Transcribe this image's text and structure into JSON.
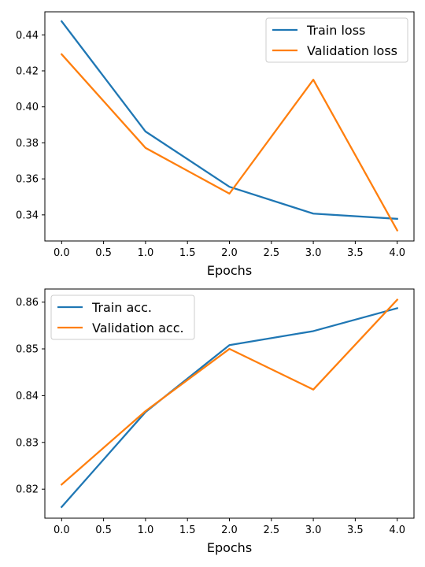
{
  "chart_data": [
    {
      "type": "line",
      "xlabel": "Epochs",
      "ylabel": "",
      "xlim": [
        -0.2,
        4.2
      ],
      "ylim": [
        0.3255,
        0.4528
      ],
      "xticks": [
        0.0,
        0.5,
        1.0,
        1.5,
        2.0,
        2.5,
        3.0,
        3.5,
        4.0
      ],
      "xtick_labels": [
        "0.0",
        "0.5",
        "1.0",
        "1.5",
        "2.0",
        "2.5",
        "3.0",
        "3.5",
        "4.0"
      ],
      "yticks": [
        0.34,
        0.36,
        0.38,
        0.4,
        0.42,
        0.44
      ],
      "ytick_labels": [
        "0.34",
        "0.36",
        "0.38",
        "0.40",
        "0.42",
        "0.44"
      ],
      "grid": false,
      "legend_position": "top-right",
      "x": [
        0,
        1,
        2,
        3,
        4
      ],
      "series": [
        {
          "name": "Train loss",
          "color": "#1f77b4",
          "values": [
            0.4475,
            0.3863,
            0.3556,
            0.3407,
            0.3378
          ]
        },
        {
          "name": "Validation loss",
          "color": "#ff7f0e",
          "values": [
            0.4292,
            0.3772,
            0.3518,
            0.4151,
            0.3314
          ]
        }
      ]
    },
    {
      "type": "line",
      "xlabel": "Epochs",
      "ylabel": "",
      "xlim": [
        -0.2,
        4.2
      ],
      "ylim": [
        0.8138,
        0.8628
      ],
      "xticks": [
        0.0,
        0.5,
        1.0,
        1.5,
        2.0,
        2.5,
        3.0,
        3.5,
        4.0
      ],
      "xtick_labels": [
        "0.0",
        "0.5",
        "1.0",
        "1.5",
        "2.0",
        "2.5",
        "3.0",
        "3.5",
        "4.0"
      ],
      "yticks": [
        0.82,
        0.83,
        0.84,
        0.85,
        0.86
      ],
      "ytick_labels": [
        "0.82",
        "0.83",
        "0.84",
        "0.85",
        "0.86"
      ],
      "grid": false,
      "legend_position": "top-left",
      "x": [
        0,
        1,
        2,
        3,
        4
      ],
      "series": [
        {
          "name": "Train acc.",
          "color": "#1f77b4",
          "values": [
            0.8162,
            0.8365,
            0.8508,
            0.8538,
            0.8587
          ]
        },
        {
          "name": "Validation acc.",
          "color": "#ff7f0e",
          "values": [
            0.821,
            0.8367,
            0.85,
            0.8413,
            0.8605
          ]
        }
      ]
    }
  ]
}
